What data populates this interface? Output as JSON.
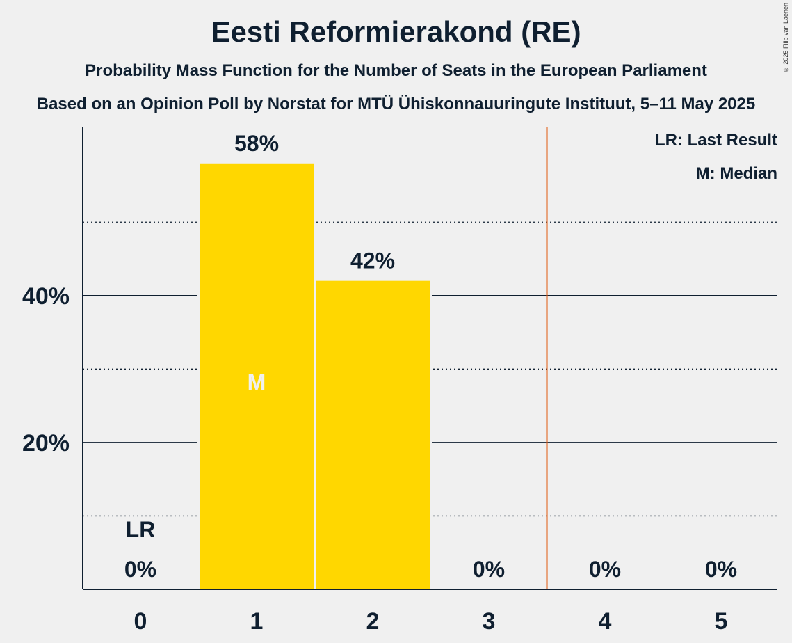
{
  "title": "Eesti Reformierakond (RE)",
  "subtitle": "Probability Mass Function for the Number of Seats in the European Parliament",
  "source": "Based on an Opinion Poll by Norstat for MTÜ Ühiskonnauuringute Instituut, 5–11 May 2025",
  "copyright": "© 2025 Filip van Laenen",
  "legend": {
    "last_result": "LR: Last Result",
    "median": "M: Median"
  },
  "colors": {
    "bar": "#FFD700",
    "threshold": "#E05A10",
    "text": "#0f1f30",
    "background": "#f0f0f0"
  },
  "chart_data": {
    "type": "bar",
    "categories": [
      "0",
      "1",
      "2",
      "3",
      "4",
      "5"
    ],
    "values": [
      0,
      58,
      42,
      0,
      0,
      0
    ],
    "value_labels": [
      "0%",
      "58%",
      "42%",
      "0%",
      "0%",
      "0%"
    ],
    "ylim": [
      0,
      63
    ],
    "y_ticks_major": [
      20,
      40
    ],
    "y_tick_labels": [
      "20%",
      "40%"
    ],
    "y_ticks_minor": [
      10,
      30,
      50
    ],
    "last_result_seat": 0,
    "last_result_label": "LR",
    "median_seat": 1,
    "median_label": "M",
    "majority_threshold_after_seat": 3,
    "xlabel": "",
    "ylabel": ""
  }
}
